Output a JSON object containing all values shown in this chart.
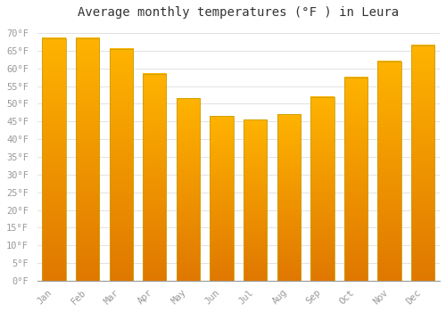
{
  "title": "Average monthly temperatures (°F ) in Leura",
  "months": [
    "Jan",
    "Feb",
    "Mar",
    "Apr",
    "May",
    "Jun",
    "Jul",
    "Aug",
    "Sep",
    "Oct",
    "Nov",
    "Dec"
  ],
  "values": [
    68.5,
    68.5,
    65.5,
    58.5,
    51.5,
    46.5,
    45.5,
    47.0,
    52.0,
    57.5,
    62.0,
    66.5
  ],
  "bar_color_top": "#FFB300",
  "bar_color_bottom": "#E07800",
  "bar_edge_color": "#C8A000",
  "ylim": [
    0,
    72
  ],
  "yticks": [
    0,
    5,
    10,
    15,
    20,
    25,
    30,
    35,
    40,
    45,
    50,
    55,
    60,
    65,
    70
  ],
  "background_color": "#FFFFFF",
  "grid_color": "#DDDDDD",
  "title_fontsize": 10,
  "tick_fontsize": 7.5,
  "tick_color": "#999999",
  "title_color": "#333333"
}
